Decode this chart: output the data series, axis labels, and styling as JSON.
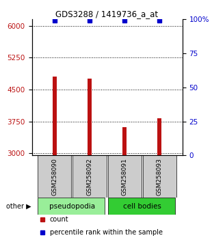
{
  "title": "GDS3288 / 1419736_a_at",
  "samples": [
    "GSM258090",
    "GSM258092",
    "GSM258091",
    "GSM258093"
  ],
  "groups": [
    "pseudopodia",
    "pseudopodia",
    "cell bodies",
    "cell bodies"
  ],
  "count_values": [
    4800,
    4755,
    3620,
    3820
  ],
  "percentile_values": [
    99,
    99,
    99,
    99
  ],
  "ylim_left": [
    2950,
    6150
  ],
  "ylim_right": [
    0,
    100
  ],
  "yticks_left": [
    3000,
    3750,
    4500,
    5250,
    6000
  ],
  "yticks_right": [
    0,
    25,
    50,
    75,
    100
  ],
  "bar_color": "#bb1111",
  "dot_color": "#0000cc",
  "pseudopodia_color": "#99ee99",
  "cell_bodies_color": "#33cc33",
  "sample_box_color": "#cccccc",
  "legend_count_color": "#bb1111",
  "legend_pct_color": "#0000cc",
  "bar_width": 0.12
}
